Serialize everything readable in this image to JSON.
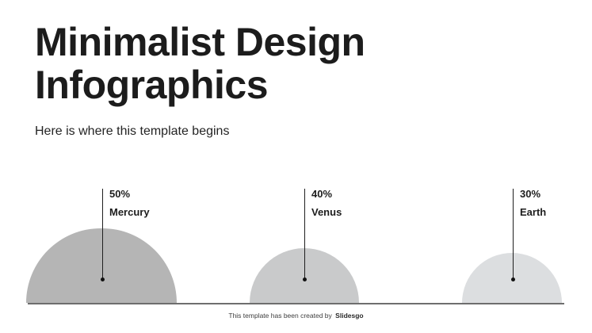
{
  "slide": {
    "title_lines": [
      "Minimalist Design",
      "Infographics"
    ],
    "subtitle": "Here is where this template begins",
    "footer": {
      "prefix": "This template has been created by",
      "brand": "Slidesgo"
    }
  },
  "chart_data": {
    "type": "bar",
    "shape": "proportional-semicircles",
    "title": "Minimalist Design Infographics",
    "subtitle": "Here is where this template begins",
    "categories": [
      "Mercury",
      "Venus",
      "Earth"
    ],
    "values": [
      50,
      40,
      30
    ],
    "value_labels": [
      "50%",
      "40%",
      "30%"
    ],
    "colors": [
      "#b5b5b5",
      "#c9cacb",
      "#dcdee0"
    ],
    "marker_color": "#111111",
    "baseline_color": "#6e6e6e",
    "grid": false,
    "legend": false
  }
}
